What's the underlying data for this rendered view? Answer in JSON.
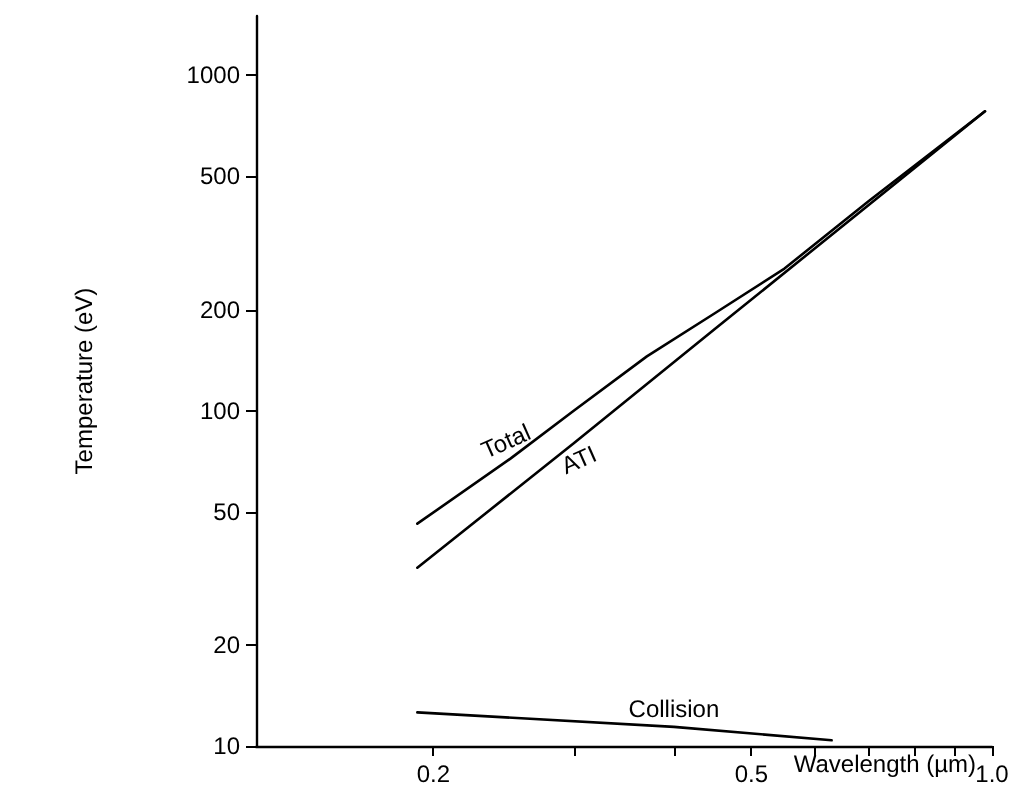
{
  "chart_data": {
    "type": "line",
    "xlabel": "Wavelength (µm)",
    "ylabel": "Temperature (eV)",
    "log": "xy",
    "grid": false,
    "legend": false,
    "marker": "none",
    "line_style": "solid",
    "xlim": [
      0.12,
      1.0
    ],
    "xticks": [
      0.2,
      {
        "value": 0.3,
        "label": null
      },
      {
        "value": 0.4,
        "label": null
      },
      0.5,
      {
        "value": 0.6,
        "label": null
      },
      {
        "value": 0.7,
        "label": null
      },
      {
        "value": 0.8,
        "label": null
      },
      {
        "value": 0.9,
        "label": null
      },
      {
        "value": 1.0,
        "label": "1.0"
      }
    ],
    "ylim": [
      10,
      1500
    ],
    "yticks": [
      10,
      20,
      50,
      100,
      200,
      500,
      1000
    ],
    "series": [
      {
        "name": "Total",
        "color": "#000000",
        "x": [
          0.191,
          0.25,
          0.3,
          0.37,
          0.45,
          0.55,
          0.7,
          0.98
        ],
        "values": [
          46,
          72,
          100,
          145,
          195,
          265,
          420,
          780
        ]
      },
      {
        "name": "ATI",
        "color": "#000000",
        "x": [
          0.191,
          0.3,
          0.45,
          0.98
        ],
        "values": [
          34,
          80,
          175,
          780
        ]
      },
      {
        "name": "Collision",
        "color": "#000000",
        "x": [
          0.191,
          0.4,
          0.63
        ],
        "values": [
          12.6,
          11.4,
          10.4
        ]
      }
    ]
  }
}
